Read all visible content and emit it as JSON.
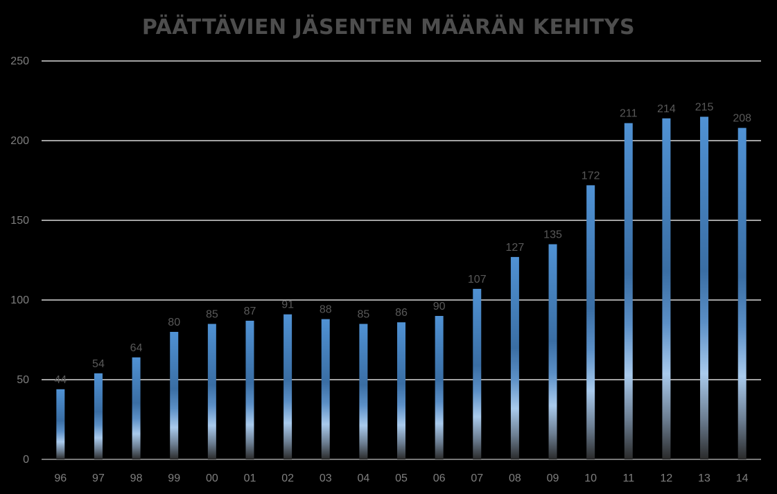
{
  "chart_data": {
    "type": "bar",
    "title": "PÄÄTTÄVIEN JÄSENTEN MÄÄRÄN KEHITYS",
    "xlabel": "",
    "ylabel": "",
    "categories": [
      "96",
      "97",
      "98",
      "99",
      "00",
      "01",
      "02",
      "03",
      "04",
      "05",
      "06",
      "07",
      "08",
      "09",
      "10",
      "11",
      "12",
      "13",
      "14"
    ],
    "values": [
      44,
      54,
      64,
      80,
      85,
      87,
      91,
      88,
      85,
      86,
      90,
      107,
      127,
      135,
      172,
      211,
      214,
      215,
      208
    ],
    "ylim": [
      0,
      250
    ],
    "yticks": [
      0,
      50,
      100,
      150,
      200,
      250
    ],
    "grid": true,
    "legend": "none",
    "data_labels": true
  },
  "colors": {
    "background": "#000000",
    "bar_top": "#4f8fd0",
    "bar_mid": "#3a6fa6",
    "bar_light": "#a6c8ec",
    "bar_bottom": "#262626",
    "gridline": "#d9d9d9",
    "title": "#4d4d4d",
    "tick_label": "#7f7f7f",
    "data_label": "#595959"
  }
}
